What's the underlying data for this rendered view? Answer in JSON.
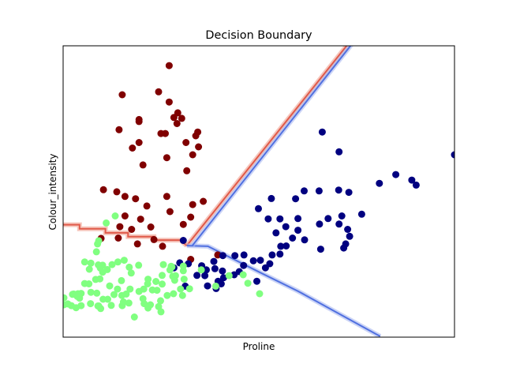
{
  "chart_data": {
    "type": "scatter",
    "title": "Decision Boundary",
    "xlabel": "Proline",
    "ylabel": "Colour_intensity",
    "xlim": [
      0,
      100
    ],
    "ylim": [
      0,
      100
    ],
    "ticks": "none",
    "grid": false,
    "legend": "none",
    "series": [
      {
        "color": "#800000",
        "points": [
          [
            27.1,
            93.2
          ],
          [
            24.4,
            84.2
          ],
          [
            29.3,
            77.0
          ],
          [
            30.3,
            75.1
          ],
          [
            14.3,
            71.2
          ],
          [
            15.1,
            83.2
          ],
          [
            19.4,
            74.7
          ],
          [
            27.1,
            80.7
          ],
          [
            19.4,
            66.8
          ],
          [
            25.0,
            69.9
          ],
          [
            26.1,
            69.9
          ],
          [
            33.9,
            69.1
          ],
          [
            29.1,
            73.3
          ],
          [
            28.3,
            75.4
          ],
          [
            19.4,
            74.0
          ],
          [
            17.7,
            64.9
          ],
          [
            34.6,
            65.3
          ],
          [
            33.1,
            62.6
          ],
          [
            13.7,
            49.9
          ],
          [
            20.4,
            59.1
          ],
          [
            31.4,
            66.8
          ],
          [
            10.3,
            50.6
          ],
          [
            34.4,
            70.4
          ],
          [
            31.6,
            57.1
          ],
          [
            26.5,
            61.6
          ],
          [
            32.6,
            41.2
          ],
          [
            39.5,
            28.2
          ],
          [
            35.8,
            46.6
          ],
          [
            33.1,
            45.5
          ],
          [
            30.7,
            38.7
          ],
          [
            27.3,
            43.1
          ],
          [
            26.5,
            48.3
          ],
          [
            21.4,
            45.0
          ],
          [
            18.5,
            47.5
          ],
          [
            19.8,
            40.5
          ],
          [
            15.8,
            41.6
          ],
          [
            22.4,
            37.8
          ],
          [
            15.8,
            48.3
          ],
          [
            9.7,
            33.9
          ],
          [
            14.5,
            37.9
          ],
          [
            17.5,
            37.0
          ],
          [
            14.1,
            34.0
          ],
          [
            19.0,
            32.0
          ],
          [
            25.4,
            31.2
          ],
          [
            23.2,
            33.5
          ],
          [
            32.6,
            26.7
          ]
        ]
      },
      {
        "color": "#000080",
        "points": [
          [
            100.0,
            62.6
          ],
          [
            70.5,
            63.6
          ],
          [
            85.0,
            55.8
          ],
          [
            80.8,
            52.8
          ],
          [
            89.1,
            53.9
          ],
          [
            70.4,
            50.5
          ],
          [
            73.0,
            49.7
          ],
          [
            65.4,
            50.2
          ],
          [
            61.6,
            50.2
          ],
          [
            59.4,
            47.5
          ],
          [
            53.2,
            47.6
          ],
          [
            49.9,
            44.1
          ],
          [
            52.4,
            40.6
          ],
          [
            55.4,
            40.6
          ],
          [
            54.4,
            35.8
          ],
          [
            56.9,
            37.9
          ],
          [
            60.0,
            40.7
          ],
          [
            65.5,
            38.8
          ],
          [
            67.7,
            40.7
          ],
          [
            71.2,
            41.6
          ],
          [
            70.5,
            38.8
          ],
          [
            72.7,
            37.0
          ],
          [
            73.2,
            34.6
          ],
          [
            72.2,
            32.0
          ],
          [
            71.7,
            30.6
          ],
          [
            65.8,
            30.2
          ],
          [
            61.7,
            33.4
          ],
          [
            60.0,
            36.7
          ],
          [
            58.6,
            34.0
          ],
          [
            57.0,
            31.3
          ],
          [
            55.6,
            31.2
          ],
          [
            55.4,
            28.5
          ],
          [
            53.4,
            28.2
          ],
          [
            52.8,
            25.2
          ],
          [
            51.7,
            23.8
          ],
          [
            49.5,
            19.2
          ],
          [
            50.4,
            26.4
          ],
          [
            48.6,
            26.2
          ],
          [
            46.1,
            24.6
          ],
          [
            45.0,
            22.5
          ],
          [
            43.7,
            21.4
          ],
          [
            40.7,
            22.7
          ],
          [
            41.0,
            20.4
          ],
          [
            38.8,
            23.5
          ],
          [
            38.5,
            26.0
          ],
          [
            40.8,
            28.0
          ],
          [
            43.9,
            28.0
          ],
          [
            46.2,
            28.2
          ],
          [
            35.4,
            24.5
          ],
          [
            36.6,
            23.1
          ],
          [
            34.2,
            21.2
          ],
          [
            39.6,
            19.2
          ],
          [
            40.4,
            18.3
          ],
          [
            28.3,
            23.8
          ],
          [
            32.0,
            25.2
          ],
          [
            29.8,
            25.5
          ],
          [
            31.2,
            17.5
          ],
          [
            36.9,
            17.6
          ],
          [
            36.2,
            21.1
          ],
          [
            39.1,
            16.7
          ],
          [
            30.7,
            33.2
          ],
          [
            66.2,
            70.4
          ],
          [
            90.2,
            52.2
          ],
          [
            76.3,
            42.2
          ]
        ]
      },
      {
        "color": "#80ff80",
        "points": [
          [
            13.3,
            41.6
          ],
          [
            11.0,
            39.2
          ],
          [
            9.1,
            33.1
          ],
          [
            8.8,
            32.0
          ],
          [
            8.5,
            29.3
          ],
          [
            5.5,
            25.8
          ],
          [
            6.7,
            23.3
          ],
          [
            7.1,
            25.4
          ],
          [
            9.0,
            24.8
          ],
          [
            9.5,
            23.7
          ],
          [
            10.1,
            24.7
          ],
          [
            11.3,
            23.2
          ],
          [
            12.5,
            24.9
          ],
          [
            14.0,
            25.8
          ],
          [
            15.6,
            26.4
          ],
          [
            16.9,
            24.0
          ],
          [
            17.4,
            22.0
          ],
          [
            19.3,
            24.7
          ],
          [
            21.7,
            19.9
          ],
          [
            23.7,
            19.1
          ],
          [
            25.3,
            21.2
          ],
          [
            27.3,
            23.1
          ],
          [
            28.7,
            21.1
          ],
          [
            30.7,
            22.8
          ],
          [
            27.6,
            24.3
          ],
          [
            32.3,
            16.6
          ],
          [
            30.0,
            16.5
          ],
          [
            28.2,
            14.9
          ],
          [
            30.5,
            14.3
          ],
          [
            26.6,
            14.3
          ],
          [
            24.9,
            12.5
          ],
          [
            24.0,
            16.1
          ],
          [
            22.3,
            11.1
          ],
          [
            21.6,
            18.3
          ],
          [
            19.4,
            15.7
          ],
          [
            16.1,
            14.8
          ],
          [
            15.0,
            14.3
          ],
          [
            13.0,
            14.6
          ],
          [
            11.4,
            13.0
          ],
          [
            10.2,
            13.0
          ],
          [
            8.6,
            15.1
          ],
          [
            7.1,
            15.4
          ],
          [
            4.6,
            15.0
          ],
          [
            2.7,
            14.8
          ],
          [
            1.2,
            11.4
          ],
          [
            0.2,
            11.1
          ],
          [
            0.2,
            13.5
          ],
          [
            2.4,
            14.7
          ],
          [
            3.6,
            14.0
          ],
          [
            4.2,
            13.4
          ],
          [
            7.0,
            11.5
          ],
          [
            8.9,
            10.7
          ],
          [
            9.6,
            9.8
          ],
          [
            9.1,
            10.7
          ],
          [
            4.6,
            10.8
          ],
          [
            3.3,
            10.1
          ],
          [
            2.1,
            10.8
          ],
          [
            3.8,
            14.9
          ],
          [
            15.4,
            12.1
          ],
          [
            16.8,
            11.7
          ],
          [
            20.4,
            13.2
          ],
          [
            20.7,
            11.5
          ],
          [
            24.4,
            10.5
          ],
          [
            25.0,
            8.7
          ],
          [
            21.7,
            10.0
          ],
          [
            18.2,
            6.9
          ],
          [
            15.1,
            10.8
          ],
          [
            12.3,
            10.9
          ],
          [
            5.5,
            18.4
          ],
          [
            6.6,
            18.3
          ],
          [
            8.3,
            19.8
          ],
          [
            10.1,
            22.3
          ],
          [
            9.4,
            20.0
          ],
          [
            11.9,
            17.6
          ],
          [
            13.9,
            16.5
          ],
          [
            14.9,
            19.4
          ],
          [
            17.1,
            16.5
          ],
          [
            20.6,
            16.5
          ],
          [
            22.8,
            16.2
          ],
          [
            25.3,
            18.2
          ],
          [
            28.5,
            19.5
          ],
          [
            30.9,
            19.9
          ],
          [
            35.3,
            23.1
          ],
          [
            42.4,
            21.1
          ],
          [
            46.0,
            21.4
          ],
          [
            47.2,
            18.5
          ],
          [
            50.2,
            14.9
          ],
          [
            39.0,
            17.5
          ],
          [
            30.7,
            24.4
          ],
          [
            27.8,
            24.1
          ],
          [
            25.6,
            24.9
          ],
          [
            28.0,
            20.9
          ]
        ]
      }
    ],
    "boundaries": [
      {
        "name": "maroon-green",
        "color": "#e05a4a",
        "glow": "#f0a090",
        "points": [
          [
            0,
            38.6
          ],
          [
            4.2,
            38.6
          ],
          [
            4.2,
            37.2
          ],
          [
            10.8,
            37.2
          ],
          [
            10.8,
            35.8
          ],
          [
            16.6,
            35.8
          ],
          [
            16.6,
            34.5
          ],
          [
            23.2,
            34.5
          ],
          [
            23.2,
            33.3
          ],
          [
            30.0,
            33.3
          ],
          [
            31.6,
            31.4
          ]
        ]
      },
      {
        "name": "maroon-navy",
        "color": "#e05a4a",
        "glow": "#f0a090",
        "points": [
          [
            31.6,
            31.4
          ],
          [
            72.8,
            100.6
          ]
        ]
      },
      {
        "name": "navy-green",
        "color": "#5070e0",
        "glow": "#a8b8f0",
        "points": [
          [
            31.6,
            31.4
          ],
          [
            37.0,
            31.2
          ],
          [
            50.0,
            22.4
          ],
          [
            60.0,
            15.8
          ],
          [
            70.0,
            8.4
          ],
          [
            80.0,
            1.0
          ],
          [
            81.0,
            0.3
          ]
        ]
      },
      {
        "name": "maroon-navy-inner",
        "color": "#5070e0",
        "glow": "#a8b8f0",
        "points": [
          [
            33.0,
            31.4
          ],
          [
            73.8,
            100.6
          ]
        ]
      }
    ]
  }
}
